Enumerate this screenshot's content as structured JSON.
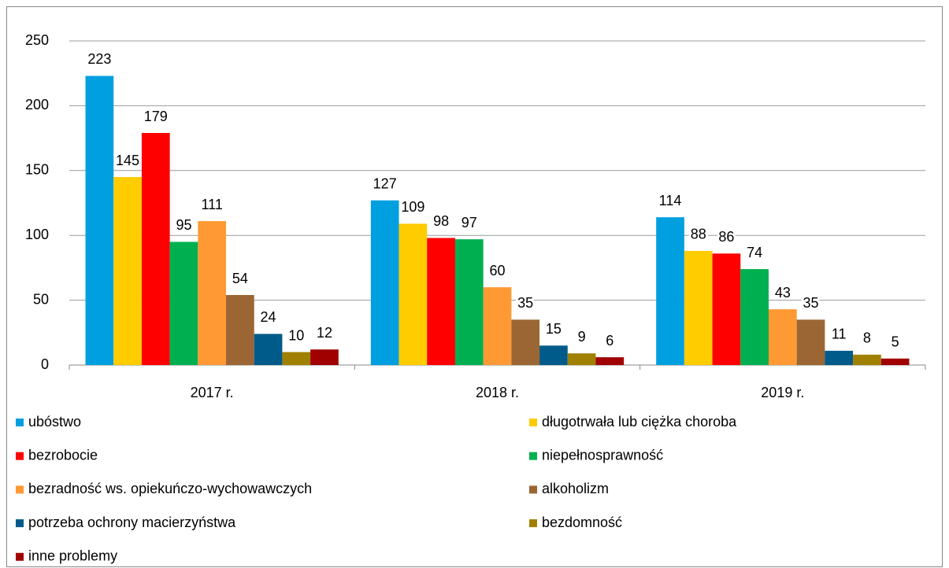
{
  "chart_data": {
    "type": "bar",
    "categories": [
      "2017 r.",
      "2018 r.",
      "2019 r."
    ],
    "series": [
      {
        "name": "ubóstwo",
        "color": "#00a0e0",
        "values": [
          223,
          127,
          114
        ]
      },
      {
        "name": "długotrwała lub ciężka choroba",
        "color": "#ffcc00",
        "values": [
          145,
          109,
          88
        ]
      },
      {
        "name": "bezrobocie",
        "color": "#ff0000",
        "values": [
          179,
          98,
          86
        ]
      },
      {
        "name": "niepełnosprawność",
        "color": "#00b050",
        "values": [
          95,
          97,
          74
        ]
      },
      {
        "name": "bezradność ws. opiekuńczo-wychowawczych",
        "color": "#ff9933",
        "values": [
          111,
          60,
          43
        ]
      },
      {
        "name": "alkoholizm",
        "color": "#9b6633",
        "values": [
          54,
          35,
          35
        ]
      },
      {
        "name": "potrzeba ochrony macierzyństwa",
        "color": "#005b8a",
        "values": [
          24,
          15,
          11
        ]
      },
      {
        "name": "bezdomność",
        "color": "#a08000",
        "values": [
          10,
          9,
          8
        ]
      },
      {
        "name": "inne problemy",
        "color": "#a00000",
        "values": [
          12,
          6,
          5
        ]
      }
    ],
    "ylim": [
      0,
      250
    ],
    "yticks": [
      0,
      50,
      100,
      150,
      200,
      250
    ],
    "grid": true,
    "legend": "bottom"
  }
}
